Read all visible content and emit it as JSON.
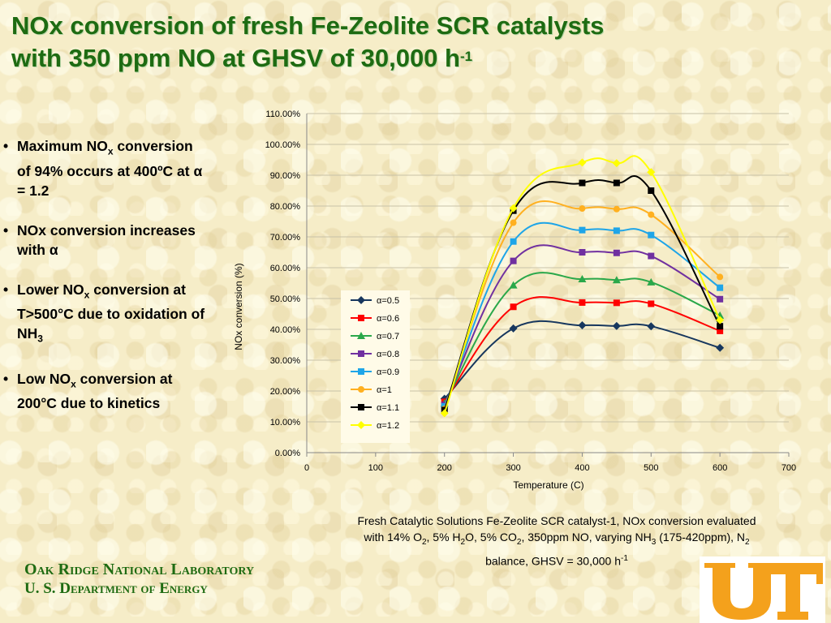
{
  "title": {
    "line1": "NOx conversion of fresh Fe-Zeolite SCR catalysts",
    "line2_main": "with 350 ppm NO at GHSV of 30,000 h",
    "line2_sup": "-1"
  },
  "bullets": [
    {
      "bullet": "•",
      "a": "Maximum NO",
      "sub": "x",
      "b": " conversion of 94% occurs at 400ºC at α = 1.2"
    },
    {
      "bullet": "•",
      "a": "NOx conversion increases with α"
    },
    {
      "bullet": "•",
      "a": "Lower NO",
      "sub": "x",
      "b": " conversion at T>500°C due to oxidation of NH",
      "sub2": "3"
    },
    {
      "bullet": "•",
      "a": "Low NO",
      "sub": "x",
      "b": " conversion at 200°C due to kinetics"
    }
  ],
  "caption": {
    "l1": "Fresh Catalytic Solutions Fe-Zeolite SCR catalyst-1, NOx conversion evaluated",
    "l2a": "with 14% O",
    "l2s1": "2",
    "l2b": ", 5% H",
    "l2s2": "2",
    "l2c": "O, 5% CO",
    "l2s3": "2",
    "l2d": ", 350ppm NO, varying NH",
    "l2s4": "3",
    "l2e": " (175-420ppm),  N",
    "l2s5": "2",
    "l3a": "balance, GHSV = 30,000 h",
    "l3sup": "-1"
  },
  "org": {
    "line1": "Oak Ridge National Laboratory",
    "line2": "U. S. Department of Energy"
  },
  "logo_icon": "ut-logo",
  "colors": {
    "title_green": "#1e6b12",
    "background": "#f6edc8",
    "logo_orange": "#f4a11c"
  },
  "chart_data": {
    "type": "line",
    "xlabel": "Temperature (C)",
    "ylabel": "NOx conversion (%)",
    "xlim": [
      0,
      700
    ],
    "ylim": [
      0,
      110
    ],
    "x_ticks": [
      "0",
      "100",
      "200",
      "300",
      "400",
      "500",
      "600",
      "700"
    ],
    "y_ticks": [
      "0.00%",
      "10.00%",
      "20.00%",
      "30.00%",
      "40.00%",
      "50.00%",
      "60.00%",
      "70.00%",
      "80.00%",
      "90.00%",
      "100.00%",
      "110.00%"
    ],
    "grid": "horizontal",
    "legend_position": "left-inside",
    "x": [
      200,
      300,
      400,
      450,
      500,
      600
    ],
    "series": [
      {
        "name": "α=0.5",
        "color": "#17375e",
        "marker": "diamond",
        "values": [
          17.5,
          40.3,
          41.3,
          41.1,
          41.0,
          34.0
        ]
      },
      {
        "name": "α=0.6",
        "color": "#ff0000",
        "marker": "square",
        "values": [
          16.5,
          47.3,
          48.7,
          48.6,
          48.3,
          39.5
        ]
      },
      {
        "name": "α=0.7",
        "color": "#2aa84a",
        "marker": "triangle",
        "values": [
          16.0,
          54.3,
          56.3,
          56.0,
          55.3,
          44.5
        ]
      },
      {
        "name": "α=0.8",
        "color": "#7030a0",
        "marker": "square",
        "values": [
          15.5,
          62.2,
          65.0,
          64.8,
          63.8,
          49.8
        ]
      },
      {
        "name": "α=0.9",
        "color": "#1ea5e8",
        "marker": "square",
        "values": [
          15.0,
          68.5,
          72.2,
          72.0,
          70.6,
          53.5
        ]
      },
      {
        "name": "α=1",
        "color": "#ffb020",
        "marker": "circle",
        "values": [
          14.2,
          74.6,
          79.2,
          79.0,
          77.2,
          57.0
        ]
      },
      {
        "name": "α=1.1",
        "color": "#000000",
        "marker": "square",
        "values": [
          13.8,
          78.5,
          87.5,
          87.5,
          85.0,
          41.0
        ]
      },
      {
        "name": "α=1.2",
        "color": "#ffff00",
        "marker": "diamond",
        "values": [
          12.8,
          79.3,
          94.1,
          93.9,
          91.0,
          43.0
        ]
      }
    ]
  }
}
